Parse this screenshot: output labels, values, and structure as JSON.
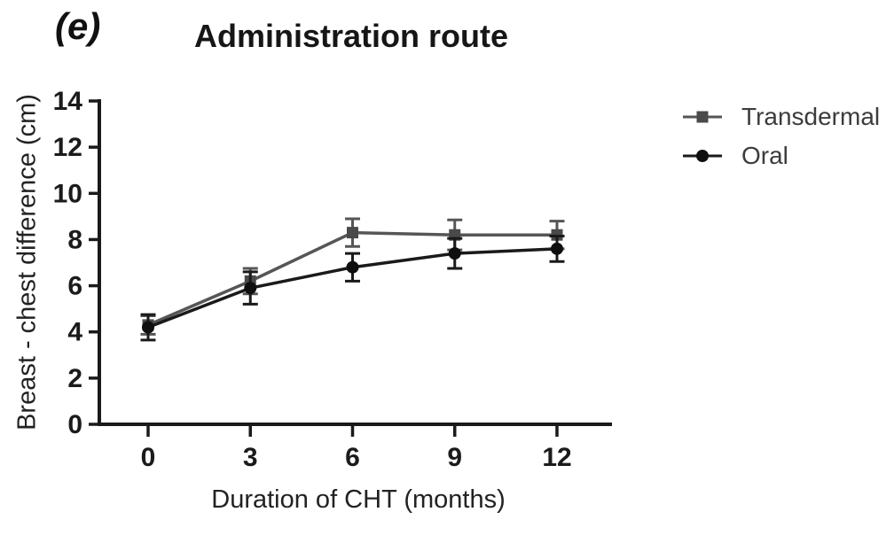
{
  "figure": {
    "panel_label": "(e)",
    "background_color": "#ffffff",
    "axis_color": "#1a1a1a"
  },
  "legend": {
    "position": "right",
    "items": [
      {
        "label": "Transdermal",
        "marker": "square-on-line-icon",
        "color": "#555555"
      },
      {
        "label": "Oral",
        "marker": "circle-on-line-icon",
        "color": "#1a1a1a"
      }
    ]
  },
  "chart_data": {
    "type": "line",
    "title": "Administration route",
    "xlabel": "Duration of CHT (months)",
    "ylabel": "Breast - chest difference (cm)",
    "x": [
      0,
      3,
      6,
      9,
      12
    ],
    "x_ticks": [
      0,
      3,
      6,
      9,
      12
    ],
    "y_ticks": [
      0,
      2,
      4,
      6,
      8,
      10,
      12,
      14
    ],
    "ylim": [
      0,
      14
    ],
    "xlim": [
      -1.5,
      13.6
    ],
    "grid": false,
    "error_bars": true,
    "legend_position": "right",
    "series": [
      {
        "name": "Transdermal",
        "marker": "square",
        "color": "#565656",
        "marker_color": "#4a4a4a",
        "values": [
          4.3,
          6.2,
          8.3,
          8.2,
          8.2
        ],
        "errors": [
          0.4,
          0.55,
          0.6,
          0.65,
          0.6
        ]
      },
      {
        "name": "Oral",
        "marker": "circle",
        "color": "#1a1a1a",
        "marker_color": "#0f0f0f",
        "values": [
          4.2,
          5.9,
          6.8,
          7.4,
          7.6
        ],
        "errors": [
          0.55,
          0.7,
          0.6,
          0.65,
          0.55
        ]
      }
    ]
  }
}
